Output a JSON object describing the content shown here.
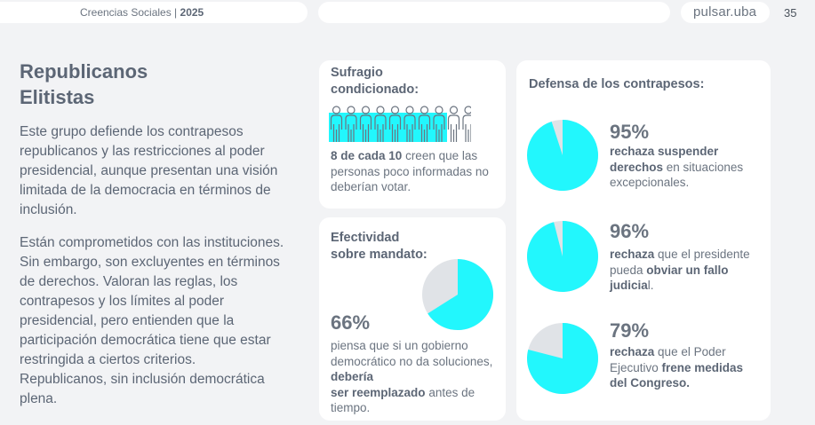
{
  "header": {
    "title": "Creencias Sociales",
    "separator": " | ",
    "year": "2025",
    "logo": "pulsar.uba",
    "page_number": "35"
  },
  "left": {
    "title_line1": "Republicanos",
    "title_line2": "Elitistas",
    "paragraph1": "Este grupo defiende los contrapesos republicanos y las restricciones al poder presidencial, aunque presentan una visión limitada de la democracia en términos de inclusión.",
    "paragraph2": "Están comprometidos con las instituciones. Sin embargo, son excluyentes en términos de derechos. Valoran las reglas, los contrapesos y los límites al poder presidencial, pero entienden que la participación democrática tiene que estar restringida a ciertos criterios. Republicanos, sin inclusión democrática plena."
  },
  "sufragio": {
    "title_line1": "Sufragio",
    "title_line2": "condicionado:",
    "highlight": "8 de cada 10",
    "text": " creen que las personas poco informadas no deberían votar.",
    "people_total": 10,
    "people_highlighted": 8
  },
  "efectividad": {
    "title_line1": "Efectividad",
    "title_line2": "sobre mandato:",
    "percent_label": "66%",
    "percent_value": 66,
    "text1": "piensa que si un gobierno democrático no da soluciones,",
    "bold1": "debería",
    "bold2": "ser reemplazado",
    "text2": " antes de tiempo."
  },
  "contrapesos": {
    "title": "Defensa de los contrapesos:",
    "items": [
      {
        "percent_label": "95%",
        "percent_value": 95,
        "bold": "rechaza suspender derechos",
        "text": " en situaciones excepcionales."
      },
      {
        "percent_label": "96%",
        "percent_value": 96,
        "bold": "rechaza",
        "text": " que el presidente pueda ",
        "bold2": "obviar un fallo judicia",
        "text2": "l."
      },
      {
        "percent_label": "79%",
        "percent_value": 79,
        "bold": "rechaza",
        "text": " que el Poder Ejecutivo ",
        "bold2": "frene medidas del Congreso."
      }
    ]
  },
  "colors": {
    "accent": "#22f7fd",
    "rest": "#e0e3e7",
    "text": "#5c6675",
    "background": "#f2f3f5"
  }
}
